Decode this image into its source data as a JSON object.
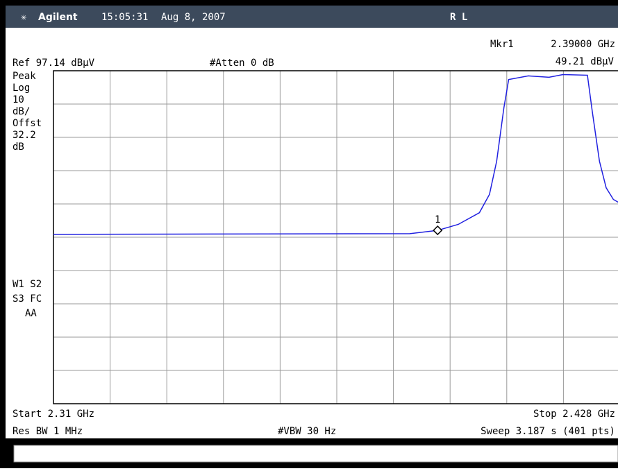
{
  "header": {
    "brand": "Agilent",
    "time": "15:05:31",
    "date": "Aug 8, 2007",
    "status": "R L"
  },
  "marker_readout": {
    "name": "Mkr1",
    "frequency": "2.39000 GHz",
    "level": "49.21 dBµV"
  },
  "settings": {
    "ref": "Ref 97.14 dBµV",
    "atten": "#Atten 0 dB"
  },
  "left_labels": [
    "Peak",
    "Log",
    "10",
    "dB/",
    "Offst",
    "32.2",
    "dB"
  ],
  "mode_labels": [
    "W1  S2",
    "S3 FC",
    "AA"
  ],
  "footer": {
    "start": "Start 2.31 GHz",
    "stop": "Stop 2.428 GHz",
    "rbw": "Res BW 1 MHz",
    "vbw": "#VBW 30 Hz",
    "sweep": "Sweep 3.187 s (401 pts)"
  },
  "chart_data": {
    "type": "line",
    "x": [
      2.31,
      2.3423,
      2.3842,
      2.39,
      2.3943,
      2.3987,
      2.4008,
      2.4023,
      2.4038,
      2.4048,
      2.4089,
      2.4132,
      2.4161,
      2.4212,
      2.4222,
      2.4237,
      2.4251,
      2.4266,
      2.4278
    ],
    "values": [
      48.0,
      48.1,
      48.2,
      49.2,
      51.0,
      54.5,
      60,
      70,
      86,
      94.5,
      95.6,
      95.2,
      96.0,
      95.8,
      85,
      70,
      62,
      58.5,
      57.5
    ],
    "color": "#2020e0",
    "xlim": [
      2.31,
      2.428
    ],
    "ylim": [
      -2.86,
      97.14
    ],
    "grid": true,
    "marker": {
      "label": "1",
      "x": 2.39,
      "value": 49.21
    }
  }
}
